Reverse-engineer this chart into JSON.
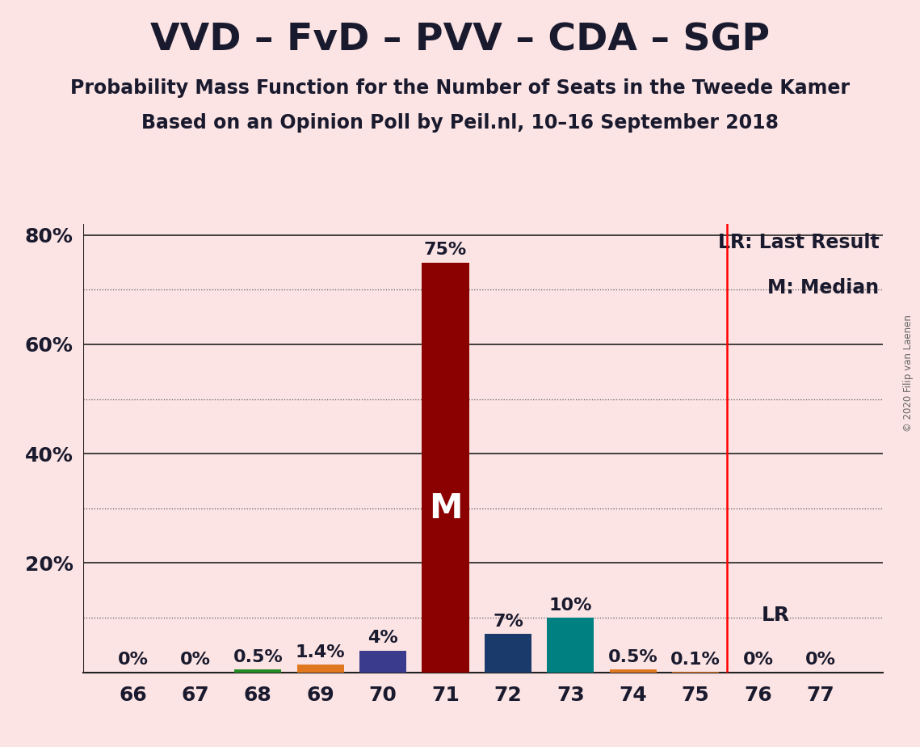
{
  "title": "VVD – FvD – PVV – CDA – SGP",
  "subtitle1": "Probability Mass Function for the Number of Seats in the Tweede Kamer",
  "subtitle2": "Based on an Opinion Poll by Peil.nl, 10–16 September 2018",
  "copyright": "© 2020 Filip van Laenen",
  "seats": [
    66,
    67,
    68,
    69,
    70,
    71,
    72,
    73,
    74,
    75,
    76,
    77
  ],
  "probabilities": [
    0.0,
    0.0,
    0.5,
    1.4,
    4.0,
    75.0,
    7.0,
    10.0,
    0.5,
    0.1,
    0.0,
    0.0
  ],
  "labels": [
    "0%",
    "0%",
    "0.5%",
    "1.4%",
    "4%",
    "75%",
    "7%",
    "10%",
    "0.5%",
    "0.1%",
    "0%",
    "0%"
  ],
  "bar_colors": [
    "#fce4e4",
    "#fce4e4",
    "#228B22",
    "#e07820",
    "#3b3b8e",
    "#8b0000",
    "#1a3a6b",
    "#008080",
    "#e07820",
    "#e07820",
    "#fce4e4",
    "#fce4e4"
  ],
  "median_seat": 71,
  "lr_seat": 75.5,
  "lr_label": "LR",
  "lr_legend": "LR: Last Result",
  "m_legend": "M: Median",
  "background_color": "#fce4e4",
  "yticks": [
    20,
    40,
    60,
    80
  ],
  "ymax": 82,
  "bar_width": 0.75,
  "label_fontsize": 16,
  "tick_fontsize": 18,
  "title_fontsize": 34,
  "subtitle_fontsize": 17
}
